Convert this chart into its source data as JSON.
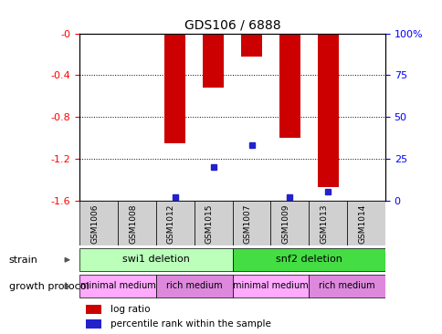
{
  "title": "GDS106 / 6888",
  "samples": [
    "GSM1006",
    "GSM1008",
    "GSM1012",
    "GSM1015",
    "GSM1007",
    "GSM1009",
    "GSM1013",
    "GSM1014"
  ],
  "log_ratios": [
    0.0,
    0.0,
    -1.05,
    -0.52,
    -0.22,
    -1.0,
    -1.47,
    0.0
  ],
  "percentile_ranks": [
    0.0,
    0.0,
    2.0,
    20.0,
    33.0,
    2.0,
    5.0,
    0.0
  ],
  "ylim_left": [
    -1.6,
    0.0
  ],
  "ylim_right": [
    0,
    100
  ],
  "yticks_left": [
    0.0,
    -0.4,
    -0.8,
    -1.2,
    -1.6
  ],
  "yticks_right": [
    0,
    25,
    50,
    75,
    100
  ],
  "bar_color": "#cc0000",
  "dot_color": "#2222cc",
  "strain_swi1_label": "swi1 deletion",
  "strain_swi1_span": [
    0,
    4
  ],
  "strain_swi1_color": "#bbffbb",
  "strain_snf2_label": "snf2 deletion",
  "strain_snf2_span": [
    4,
    8
  ],
  "strain_snf2_color": "#44dd44",
  "protocol_items": [
    {
      "label": "minimal medium",
      "span": [
        0,
        2
      ],
      "color": "#ffaaff"
    },
    {
      "label": "rich medium",
      "span": [
        2,
        4
      ],
      "color": "#dd88dd"
    },
    {
      "label": "minimal medium",
      "span": [
        4,
        6
      ],
      "color": "#ffaaff"
    },
    {
      "label": "rich medium",
      "span": [
        6,
        8
      ],
      "color": "#dd88dd"
    }
  ],
  "strain_label": "strain",
  "protocol_label": "growth protocol",
  "sample_box_color": "#d0d0d0",
  "legend_items": [
    {
      "label": "log ratio",
      "color": "#cc0000"
    },
    {
      "label": "percentile rank within the sample",
      "color": "#2222cc"
    }
  ]
}
